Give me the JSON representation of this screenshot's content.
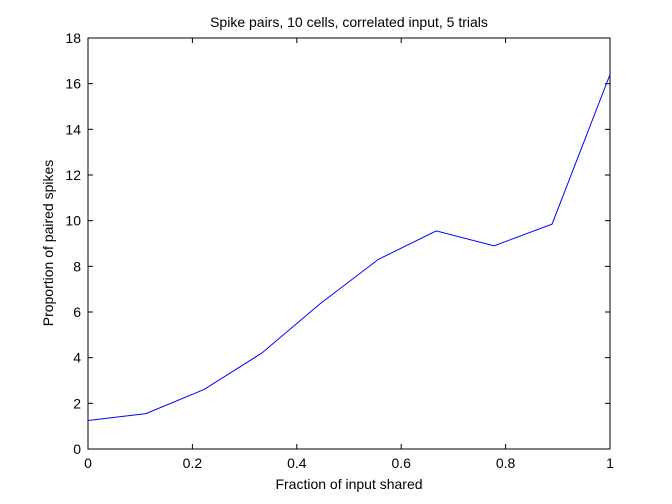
{
  "chart_data": {
    "type": "line",
    "title": "Spike pairs, 10 cells, correlated input, 5 trials",
    "xlabel": "Fraction of input shared",
    "ylabel": "Proportion of paired spikes",
    "xlim": [
      0,
      1
    ],
    "ylim": [
      0,
      18
    ],
    "xticks": [
      0,
      0.2,
      0.4,
      0.6,
      0.8,
      1
    ],
    "xtick_labels": [
      "0",
      "0.2",
      "0.4",
      "0.6",
      "0.8",
      "1"
    ],
    "yticks": [
      0,
      2,
      4,
      6,
      8,
      10,
      12,
      14,
      16,
      18
    ],
    "ytick_labels": [
      "0",
      "2",
      "4",
      "6",
      "8",
      "10",
      "12",
      "14",
      "16",
      "18"
    ],
    "grid": false,
    "line_color": "#0000ff",
    "series": [
      {
        "x": [
          0,
          0.111,
          0.222,
          0.333,
          0.444,
          0.556,
          0.667,
          0.778,
          0.889,
          1.0
        ],
        "values": [
          1.25,
          1.55,
          2.6,
          4.2,
          6.35,
          8.3,
          9.55,
          8.9,
          9.85,
          16.4
        ]
      }
    ]
  }
}
